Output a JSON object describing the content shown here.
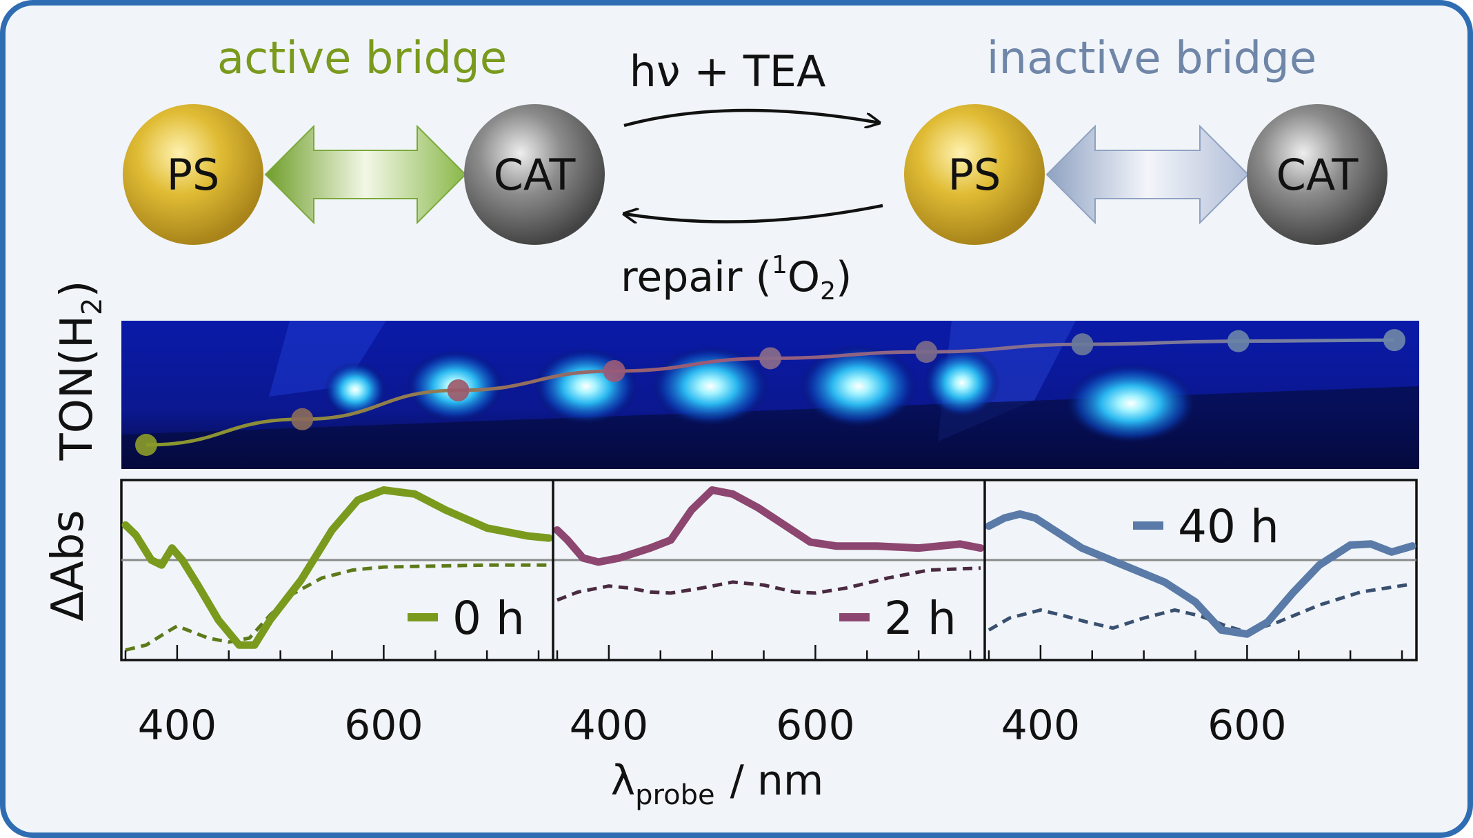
{
  "diagram": {
    "left_label": "active bridge",
    "right_label": "inactive bridge",
    "forward_label": "hν + TEA",
    "reverse_label_prefix": "repair (",
    "reverse_label_sup": "1",
    "reverse_label_o": "O",
    "reverse_label_sub": "2",
    "reverse_label_suffix": ")",
    "ps_label": "PS",
    "cat_label": "CAT",
    "colors": {
      "active": "#7a9a1e",
      "inactive": "#6f86a8",
      "ps_sphere": "#d9b52c",
      "cat_sphere": "#7f7f7f",
      "frame": "#2f6db3",
      "background": "#f1f5f9"
    }
  },
  "ton_panel": {
    "ylabel_prefix": "TON(H",
    "ylabel_sub": "2",
    "ylabel_suffix": ")",
    "background": "photo of blue LED-illuminated sample array",
    "points": [
      {
        "x": 0,
        "y": 0.0,
        "color": "#8a9a2a"
      },
      {
        "x": 1,
        "y": 0.24,
        "color": "#8a6a5a"
      },
      {
        "x": 2,
        "y": 0.51,
        "color": "#9a5a6a"
      },
      {
        "x": 3,
        "y": 0.69,
        "color": "#9a5a7a"
      },
      {
        "x": 4,
        "y": 0.81,
        "color": "#8a6a8a"
      },
      {
        "x": 5,
        "y": 0.87,
        "color": "#7a6a8a"
      },
      {
        "x": 6,
        "y": 0.94,
        "color": "#6a7a9a"
      },
      {
        "x": 7,
        "y": 0.97,
        "color": "#6a82a8"
      },
      {
        "x": 8,
        "y": 0.98,
        "color": "#6f86a8"
      }
    ]
  },
  "chart_data": {
    "type": "line",
    "ylabel": "ΔAbs",
    "xlabel_main": "λ",
    "xlabel_sub": "probe",
    "xlabel_unit": "/ nm",
    "xlim": [
      350,
      760
    ],
    "ylim": [
      -1.0,
      0.8
    ],
    "xticks": [
      400,
      600
    ],
    "panels": [
      {
        "legend": "0 h",
        "color": "#7a9a1e",
        "solid": [
          [
            350,
            0.35
          ],
          [
            360,
            0.25
          ],
          [
            375,
            0.0
          ],
          [
            385,
            -0.05
          ],
          [
            395,
            0.12
          ],
          [
            405,
            0.0
          ],
          [
            420,
            -0.25
          ],
          [
            440,
            -0.6
          ],
          [
            460,
            -0.85
          ],
          [
            475,
            -0.85
          ],
          [
            490,
            -0.6
          ],
          [
            520,
            -0.2
          ],
          [
            550,
            0.3
          ],
          [
            575,
            0.6
          ],
          [
            600,
            0.7
          ],
          [
            630,
            0.66
          ],
          [
            660,
            0.5
          ],
          [
            700,
            0.32
          ],
          [
            740,
            0.24
          ],
          [
            760,
            0.22
          ]
        ],
        "dashed": [
          [
            350,
            -0.9
          ],
          [
            370,
            -0.85
          ],
          [
            390,
            -0.72
          ],
          [
            400,
            -0.66
          ],
          [
            410,
            -0.7
          ],
          [
            430,
            -0.78
          ],
          [
            450,
            -0.82
          ],
          [
            470,
            -0.78
          ],
          [
            490,
            -0.55
          ],
          [
            510,
            -0.35
          ],
          [
            540,
            -0.18
          ],
          [
            570,
            -0.1
          ],
          [
            600,
            -0.07
          ],
          [
            650,
            -0.06
          ],
          [
            700,
            -0.05
          ],
          [
            760,
            -0.05
          ]
        ]
      },
      {
        "legend": "2 h",
        "color": "#8c4670",
        "solid": [
          [
            350,
            0.3
          ],
          [
            360,
            0.2
          ],
          [
            375,
            0.02
          ],
          [
            390,
            -0.02
          ],
          [
            410,
            0.02
          ],
          [
            440,
            0.12
          ],
          [
            460,
            0.2
          ],
          [
            480,
            0.5
          ],
          [
            500,
            0.7
          ],
          [
            520,
            0.66
          ],
          [
            545,
            0.52
          ],
          [
            570,
            0.35
          ],
          [
            595,
            0.18
          ],
          [
            620,
            0.14
          ],
          [
            660,
            0.14
          ],
          [
            700,
            0.12
          ],
          [
            740,
            0.16
          ],
          [
            760,
            0.12
          ]
        ],
        "dashed": [
          [
            350,
            -0.4
          ],
          [
            370,
            -0.32
          ],
          [
            400,
            -0.26
          ],
          [
            420,
            -0.28
          ],
          [
            440,
            -0.32
          ],
          [
            460,
            -0.33
          ],
          [
            490,
            -0.28
          ],
          [
            520,
            -0.22
          ],
          [
            550,
            -0.25
          ],
          [
            580,
            -0.32
          ],
          [
            600,
            -0.33
          ],
          [
            630,
            -0.28
          ],
          [
            670,
            -0.18
          ],
          [
            710,
            -0.1
          ],
          [
            760,
            -0.08
          ]
        ]
      },
      {
        "legend": "40 h",
        "color": "#5a7ba8",
        "solid": [
          [
            350,
            0.34
          ],
          [
            365,
            0.42
          ],
          [
            380,
            0.46
          ],
          [
            395,
            0.42
          ],
          [
            410,
            0.32
          ],
          [
            440,
            0.12
          ],
          [
            480,
            -0.05
          ],
          [
            520,
            -0.22
          ],
          [
            550,
            -0.42
          ],
          [
            575,
            -0.7
          ],
          [
            600,
            -0.74
          ],
          [
            620,
            -0.62
          ],
          [
            645,
            -0.32
          ],
          [
            670,
            -0.05
          ],
          [
            700,
            0.15
          ],
          [
            720,
            0.16
          ],
          [
            740,
            0.08
          ],
          [
            760,
            0.14
          ]
        ],
        "dashed": [
          [
            350,
            -0.7
          ],
          [
            370,
            -0.58
          ],
          [
            400,
            -0.5
          ],
          [
            420,
            -0.55
          ],
          [
            445,
            -0.62
          ],
          [
            470,
            -0.68
          ],
          [
            500,
            -0.58
          ],
          [
            530,
            -0.5
          ],
          [
            555,
            -0.56
          ],
          [
            580,
            -0.66
          ],
          [
            600,
            -0.72
          ],
          [
            630,
            -0.62
          ],
          [
            670,
            -0.45
          ],
          [
            710,
            -0.32
          ],
          [
            760,
            -0.24
          ]
        ]
      }
    ]
  }
}
